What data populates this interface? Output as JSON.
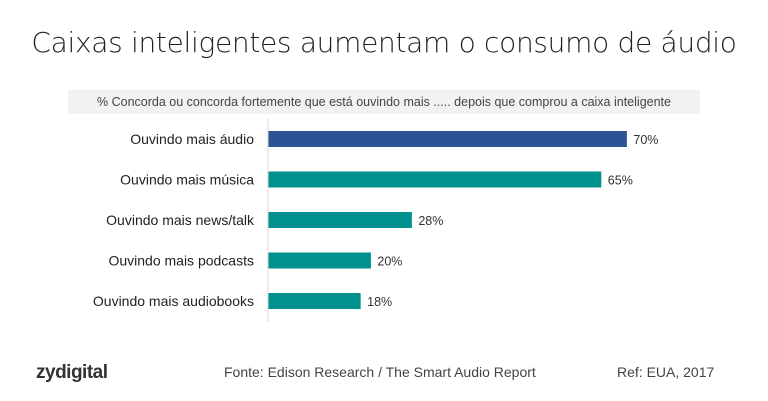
{
  "chart_data": {
    "type": "bar",
    "orientation": "horizontal",
    "title": "Caixas inteligentes aumentam o consumo de áudio",
    "subtitle": "% Concorda ou concorda fortemente que está ouvindo mais ..... depois que comprou a caixa inteligente",
    "categories": [
      "Ouvindo mais áudio",
      "Ouvindo mais música",
      "Ouvindo mais news/talk",
      "Ouvindo mais podcasts",
      "Ouvindo mais audiobooks"
    ],
    "values": [
      70,
      65,
      28,
      20,
      18
    ],
    "labels": [
      "70%",
      "65%",
      "28%",
      "20%",
      "18%"
    ],
    "colors": [
      "#2e5395",
      "#00918e",
      "#00918e",
      "#00918e",
      "#00918e"
    ],
    "xlim": [
      0,
      100
    ],
    "grid": false
  },
  "footer": {
    "logo": "zydigital",
    "source": "Fonte: Edison Research / The Smart Audio Report",
    "ref": "Ref: EUA, 2017"
  }
}
